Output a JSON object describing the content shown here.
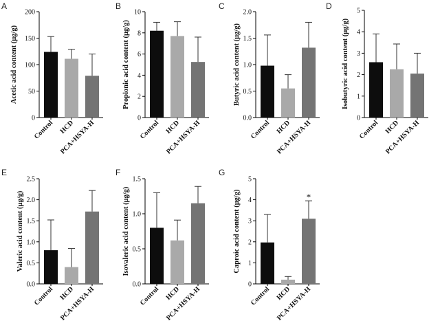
{
  "chart_data": [
    {
      "panel": "A",
      "type": "bar",
      "ylabel": "Acetic acid content (μg/g)",
      "categories": [
        "Control",
        "HCD",
        "PCA+HSYA-H"
      ],
      "values": [
        124,
        111,
        79
      ],
      "errors": [
        29,
        18,
        41
      ],
      "ylim": [
        0,
        200
      ],
      "yticks": [
        0,
        50,
        100,
        150,
        200
      ],
      "significance": [
        "",
        "",
        ""
      ]
    },
    {
      "panel": "B",
      "type": "bar",
      "ylabel": "Propionic acid content (μg/g)",
      "categories": [
        "Control",
        "HCD",
        "PCA+HSYA-H"
      ],
      "values": [
        8.2,
        7.7,
        5.25
      ],
      "errors": [
        0.8,
        1.35,
        2.35
      ],
      "ylim": [
        0,
        10
      ],
      "yticks": [
        0,
        2,
        4,
        6,
        8,
        10
      ],
      "significance": [
        "",
        "",
        ""
      ]
    },
    {
      "panel": "C",
      "type": "bar",
      "ylabel": "Butyric acid content (μg/g)",
      "categories": [
        "Control",
        "HCD",
        "PCA+HSYA-H"
      ],
      "values": [
        0.98,
        0.55,
        1.32
      ],
      "errors": [
        0.58,
        0.26,
        0.48
      ],
      "ylim": [
        0,
        2.0
      ],
      "yticks": [
        0.0,
        0.5,
        1.0,
        1.5,
        2.0
      ],
      "significance": [
        "",
        "",
        ""
      ]
    },
    {
      "panel": "D",
      "type": "bar",
      "ylabel": "Isobutyric acid content (μg/g)",
      "categories": [
        "Control",
        "HCD",
        "PCA+HSYA-H"
      ],
      "values": [
        2.58,
        2.25,
        2.05
      ],
      "errors": [
        1.32,
        1.18,
        0.95
      ],
      "ylim": [
        0,
        5
      ],
      "yticks": [
        0,
        1,
        2,
        3,
        4,
        5
      ],
      "significance": [
        "",
        "",
        ""
      ]
    },
    {
      "panel": "E",
      "type": "bar",
      "ylabel": "Valeric acid content (μg/g)",
      "categories": [
        "Control",
        "HCD",
        "PCA+HSYA-H"
      ],
      "values": [
        0.8,
        0.4,
        1.72
      ],
      "errors": [
        0.72,
        0.44,
        0.5
      ],
      "ylim": [
        0,
        2.5
      ],
      "yticks": [
        0.0,
        0.5,
        1.0,
        1.5,
        2.0,
        2.5
      ],
      "significance": [
        "",
        "",
        ""
      ]
    },
    {
      "panel": "F",
      "type": "bar",
      "ylabel": "Isovaleric acid content (μg/g)",
      "categories": [
        "Control",
        "HCD",
        "PCA+HSYA-H"
      ],
      "values": [
        0.8,
        0.62,
        1.15
      ],
      "errors": [
        0.5,
        0.29,
        0.24
      ],
      "ylim": [
        0,
        1.5
      ],
      "yticks": [
        0.0,
        0.5,
        1.0,
        1.5
      ],
      "significance": [
        "",
        "",
        ""
      ]
    },
    {
      "panel": "G",
      "type": "bar",
      "ylabel": "Caproic acid content (μg/g)",
      "categories": [
        "Control",
        "HCD",
        "PCA+HSYA-H"
      ],
      "values": [
        1.97,
        0.2,
        3.1
      ],
      "errors": [
        1.33,
        0.15,
        0.85
      ],
      "ylim": [
        0,
        5
      ],
      "yticks": [
        0,
        1,
        2,
        3,
        4,
        5
      ],
      "significance": [
        "",
        "",
        "*"
      ]
    }
  ],
  "bar_colors": [
    "#0d0d0d",
    "#a9a9a9",
    "#747474"
  ]
}
